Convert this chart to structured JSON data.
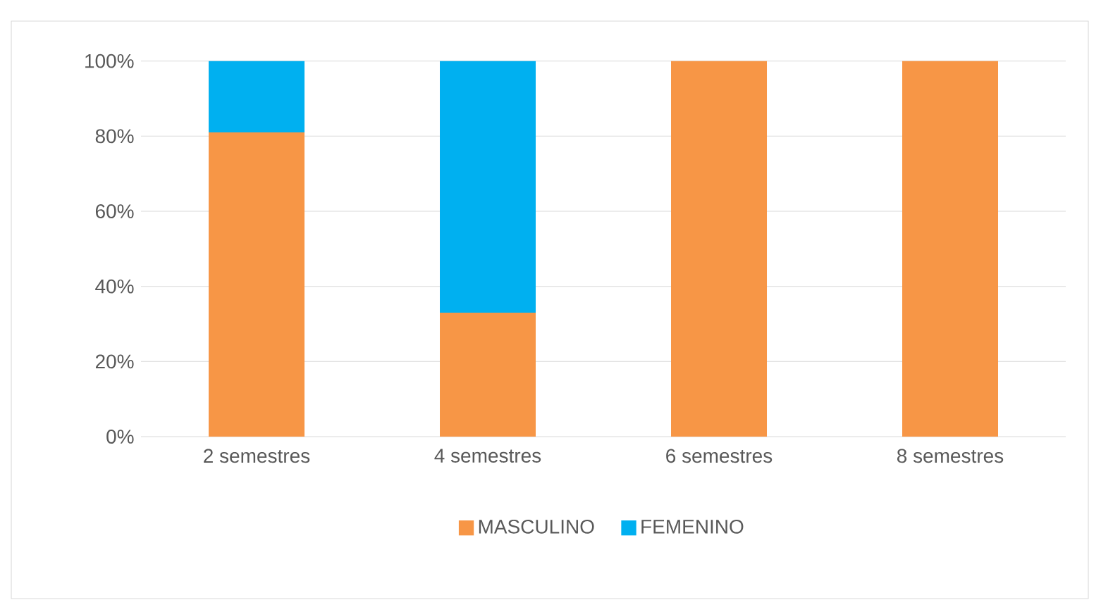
{
  "chart_data": {
    "type": "bar",
    "stacked": true,
    "categories": [
      "2 semestres",
      "4 semestres",
      "6 semestres",
      "8 semestres"
    ],
    "series": [
      {
        "name": "MASCULINO",
        "color": "#f79646",
        "values": [
          81,
          33,
          100,
          100
        ]
      },
      {
        "name": "FEMENINO",
        "color": "#00b0f0",
        "values": [
          19,
          67,
          0,
          0
        ]
      }
    ],
    "ylim": [
      0,
      100
    ],
    "yticks": [
      {
        "value": 0,
        "label": "0%"
      },
      {
        "value": 20,
        "label": "20%"
      },
      {
        "value": 40,
        "label": "40%"
      },
      {
        "value": 60,
        "label": "60%"
      },
      {
        "value": 80,
        "label": "80%"
      },
      {
        "value": 100,
        "label": "100%"
      }
    ],
    "grid": "y",
    "legend": "bottom"
  }
}
